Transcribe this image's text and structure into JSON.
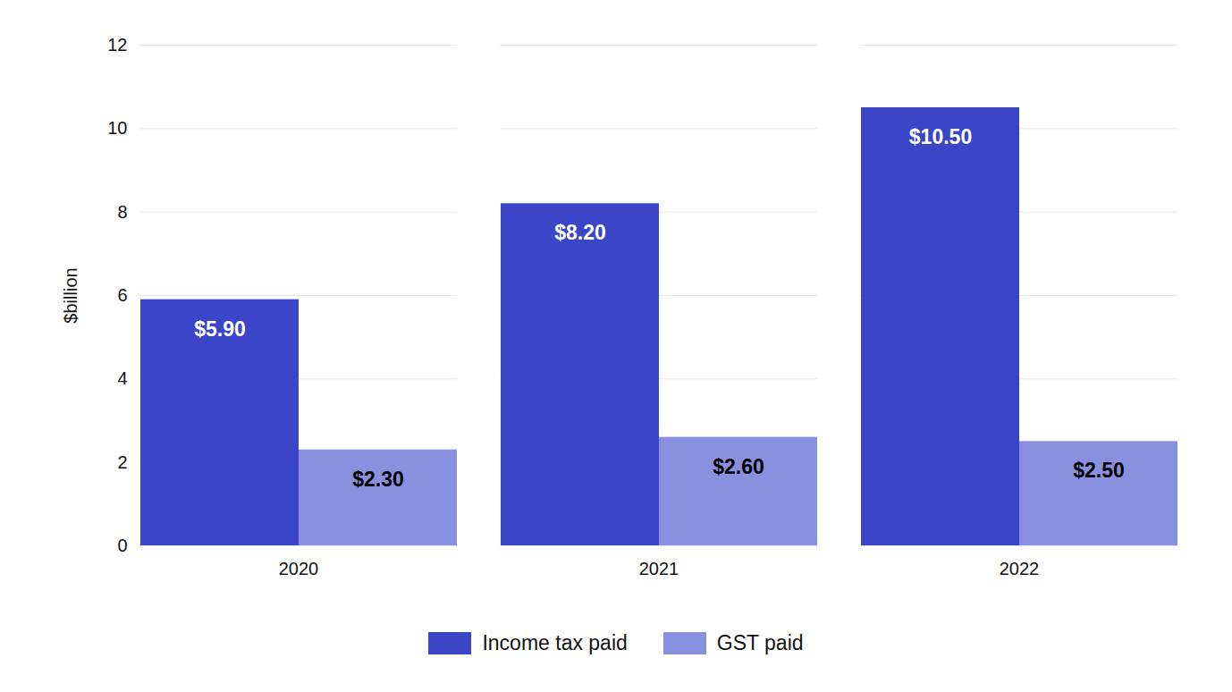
{
  "chart_data": {
    "type": "bar",
    "y_label": "$billion",
    "categories": [
      "2020",
      "2021",
      "2022"
    ],
    "series": [
      {
        "name": "Income tax paid",
        "color": "#3a45c8",
        "values": [
          5.9,
          8.2,
          10.5
        ],
        "value_labels": [
          "$5.90",
          "$8.20",
          "$10.50"
        ]
      },
      {
        "name": "GST paid",
        "color": "#8a90e0",
        "values": [
          2.3,
          2.6,
          2.5
        ],
        "value_labels": [
          "$2.30",
          "$2.60",
          "$2.50"
        ]
      }
    ],
    "ylim": [
      0,
      12
    ],
    "yticks": [
      0,
      2,
      4,
      6,
      8,
      10,
      12
    ],
    "grid": true,
    "legend": "bottom",
    "data_labels": true
  }
}
